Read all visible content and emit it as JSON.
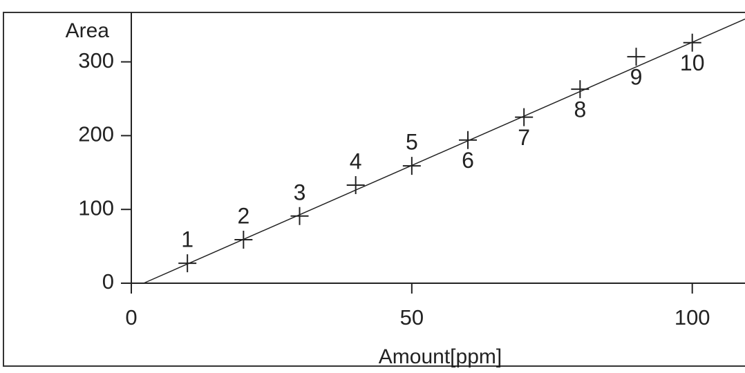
{
  "chart_data": {
    "type": "scatter",
    "x_label": "Amount[ppm]",
    "y_label": "Area",
    "x": [
      10,
      20,
      30,
      40,
      50,
      60,
      70,
      80,
      90,
      100
    ],
    "values": [
      27,
      59,
      91,
      133,
      159,
      194,
      225,
      263,
      307,
      326
    ],
    "labels": [
      "1",
      "2",
      "3",
      "4",
      "5",
      "6",
      "7",
      "8",
      "9",
      "10"
    ],
    "fit_line": {
      "x": [
        2.2,
        109.4
      ],
      "y": [
        0,
        358
      ]
    },
    "color": "#222222",
    "xlim": [
      0,
      109.4
    ],
    "ylim": [
      0,
      367
    ],
    "xticks": [
      0,
      50,
      100
    ],
    "yticks": [
      0,
      100,
      200,
      300
    ]
  }
}
